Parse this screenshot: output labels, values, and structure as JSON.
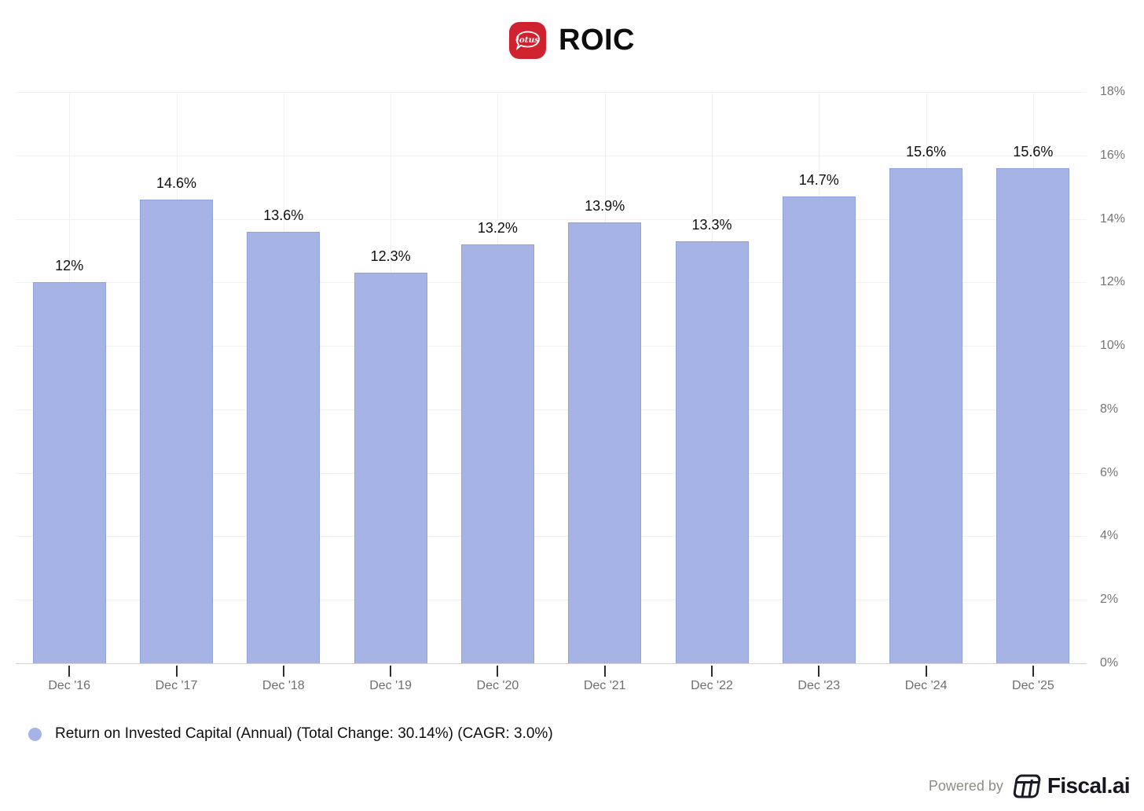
{
  "header": {
    "title": "ROIC",
    "logo": "lotus-logo"
  },
  "chart_data": {
    "type": "bar",
    "title": "ROIC",
    "categories": [
      "Dec '16",
      "Dec '17",
      "Dec '18",
      "Dec '19",
      "Dec '20",
      "Dec '21",
      "Dec '22",
      "Dec '23",
      "Dec '24",
      "Dec '25"
    ],
    "values": [
      12,
      14.6,
      13.6,
      12.3,
      13.2,
      13.9,
      13.3,
      14.7,
      15.6,
      15.6
    ],
    "bar_labels": [
      "12%",
      "14.6%",
      "13.6%",
      "12.3%",
      "13.2%",
      "13.9%",
      "13.3%",
      "14.7%",
      "15.6%",
      "15.6%"
    ],
    "series_name": "Return on Invested Capital (Annual)",
    "xlabel": "",
    "ylabel": "",
    "ylim": [
      0,
      18
    ],
    "y_tick_values": [
      0,
      2,
      4,
      6,
      8,
      10,
      12,
      14,
      16,
      18
    ],
    "y_tick_labels": [
      "0%",
      "2%",
      "4%",
      "6%",
      "8%",
      "10%",
      "12%",
      "14%",
      "16%",
      "18%"
    ],
    "grid": true,
    "legend_position": "bottom-left",
    "y_axis_side": "right"
  },
  "legend": {
    "label": "Return on Invested Capital (Annual) (Total Change: 30.14%) (CAGR: 3.0%)",
    "marker_color": "#a6b4e5"
  },
  "footer": {
    "powered_by": "Powered by",
    "brand": "Fiscal.ai"
  },
  "colors": {
    "bar_fill": "#a6b4e5",
    "bar_border": "#90a4da",
    "grid_line": "#f1f1f4",
    "axis_line": "#d2d2d6",
    "tick_mark": "#2e2e2e",
    "x_label": "#6e6e6e",
    "y_label": "#757573",
    "value_label": "#0e0e0e",
    "lotus_red": "#d0212e",
    "brand_dark": "#16161f",
    "powered_gray": "#8d8d86"
  }
}
